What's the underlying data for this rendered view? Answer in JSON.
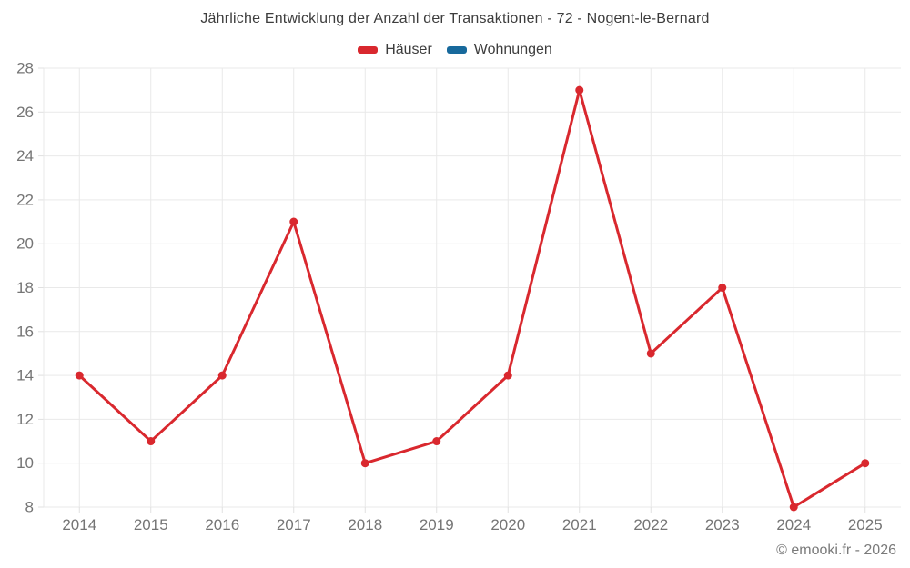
{
  "title": "Jährliche Entwicklung der Anzahl der Transaktionen - 72 - Nogent-le-Bernard",
  "footer": "© emooki.fr - 2026",
  "legend": {
    "items": [
      {
        "label": "Häuser",
        "color": "#d9282e"
      },
      {
        "label": "Wohnungen",
        "color": "#17699c"
      }
    ]
  },
  "colors": {
    "grid": "#e9e9e9",
    "tick": "#e0e0e0",
    "axis_label": "#757575",
    "title_text": "#3d3d3d",
    "footer_text": "#7a7a7a",
    "haeuser_red": "#d9282e",
    "wohnungen_blue": "#17699c",
    "background": "#ffffff"
  },
  "chart_data": {
    "type": "line",
    "title": "Jährliche Entwicklung der Anzahl der Transaktionen - 72 - Nogent-le-Bernard",
    "categories": [
      "2014",
      "2015",
      "2016",
      "2017",
      "2018",
      "2019",
      "2020",
      "2021",
      "2022",
      "2023",
      "2024",
      "2025"
    ],
    "series": [
      {
        "name": "Häuser",
        "color": "#d9282e",
        "visible": true,
        "values": [
          14,
          11,
          14,
          21,
          10,
          11,
          14,
          27,
          15,
          18,
          8,
          10
        ]
      },
      {
        "name": "Wohnungen",
        "color": "#17699c",
        "visible": false,
        "values": []
      }
    ],
    "xlabel": "",
    "ylabel": "",
    "ylim": [
      8,
      28
    ],
    "ytick_step": 2,
    "yticks": [
      8,
      10,
      12,
      14,
      16,
      18,
      20,
      22,
      24,
      26,
      28
    ],
    "grid": true,
    "legend_position": "top",
    "marker": "circle"
  }
}
